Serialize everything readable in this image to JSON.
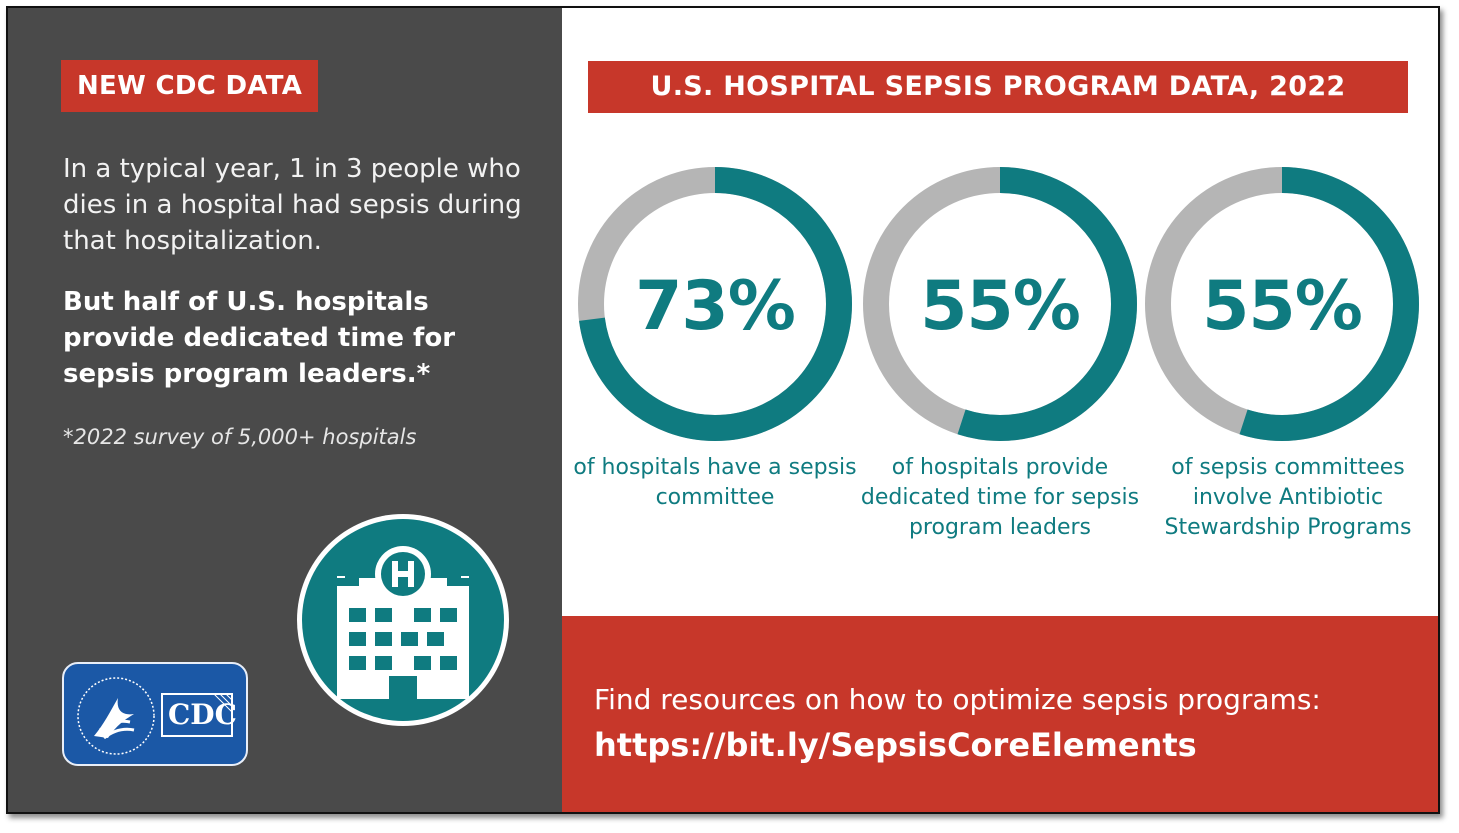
{
  "left": {
    "badge": "NEW CDC DATA",
    "intro": "In a typical year, 1 in 3 people who dies in a hospital had sepsis during that hospitalization.",
    "emphasis": "But half of U.S. hospitals provide dedicated time for sepsis program leaders.*",
    "footnote": "*2022 survey of 5,000+ hospitals",
    "hospital_icon": "hospital-building-icon",
    "logo": "hhs-cdc-logo",
    "logo_text": "CDC"
  },
  "right": {
    "title": "U.S. HOSPITAL SEPSIS PROGRAM DATA, 2022",
    "stats": [
      {
        "value": "73%",
        "percent": 73,
        "label": "of hospitals have a sepsis committee"
      },
      {
        "value": "55%",
        "percent": 55,
        "label": "of hospitals provide dedicated time for sepsis program leaders"
      },
      {
        "value": "55%",
        "percent": 55,
        "label": "of sepsis committees involve Antibiotic Stewardship Programs"
      }
    ]
  },
  "banner": {
    "text": "Find resources on how to optimize sepsis programs:",
    "link": "https://bit.ly/SepsisCoreElements"
  },
  "colors": {
    "accent_red": "#c7372a",
    "teal": "#0f7b80",
    "dark_panel": "#4a4a4a",
    "ring_gray": "#b5b5b5",
    "logo_blue": "#1b58a6"
  }
}
